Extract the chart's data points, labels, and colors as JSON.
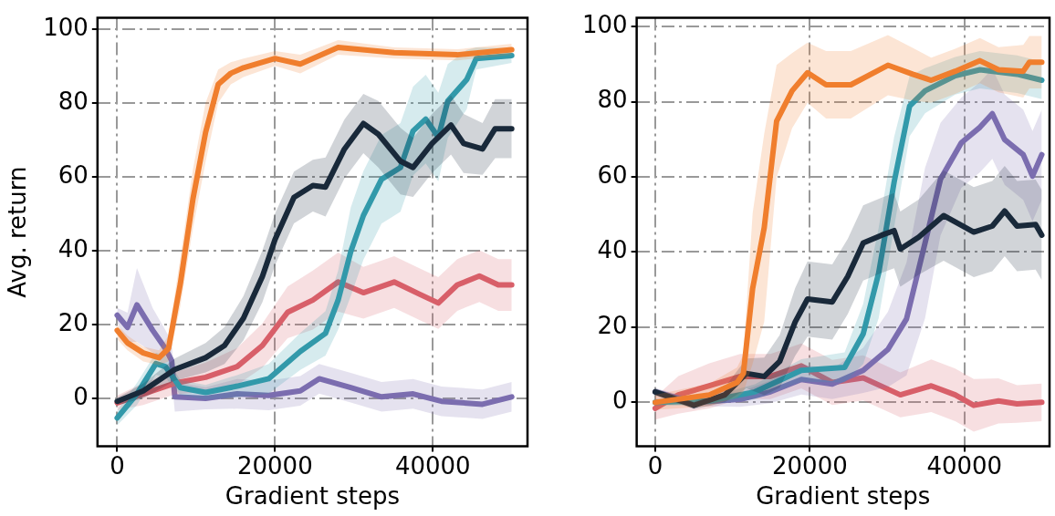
{
  "chart_data": [
    {
      "type": "line",
      "xlabel": "Gradient steps",
      "ylabel": "Avg. return",
      "xlim": [
        -2500,
        52000
      ],
      "ylim": [
        -13,
        103
      ],
      "xticks": [
        0,
        20000,
        40000
      ],
      "yticks": [
        0,
        20,
        40,
        60,
        80,
        100
      ],
      "grid": true,
      "line_style": "solid",
      "marker": "none",
      "series": [
        {
          "color": "#f07f2e",
          "x": [
            0,
            1300,
            3300,
            5300,
            6500,
            8000,
            9600,
            11200,
            12800,
            14400,
            16000,
            20000,
            23200,
            28000,
            35100,
            43100,
            50000
          ],
          "values": [
            18.4,
            15,
            12.3,
            11,
            13.5,
            31,
            54,
            72,
            85,
            88,
            89.5,
            92,
            90.5,
            95,
            93.6,
            93,
            94.4
          ],
          "lower": [
            16,
            13,
            10,
            9,
            10,
            25,
            46,
            64,
            80,
            85,
            87,
            90,
            88,
            93,
            92,
            91.5,
            93
          ],
          "upper": [
            20,
            17,
            14,
            13,
            17,
            38,
            62,
            80,
            89,
            91,
            92,
            94,
            93,
            97,
            95,
            94.5,
            96
          ]
        },
        {
          "color": "#1a2a3a",
          "x": [
            0,
            3300,
            7300,
            11200,
            13600,
            16000,
            18400,
            20000,
            22400,
            24800,
            26400,
            28800,
            31200,
            33100,
            35900,
            37500,
            39900,
            42300,
            43900,
            46300,
            47900,
            50000
          ],
          "values": [
            -0.8,
            2,
            7.8,
            11,
            14.3,
            21.7,
            33,
            43,
            54.4,
            57.6,
            57.2,
            67.5,
            74.4,
            71.5,
            64.2,
            62.5,
            69,
            74,
            69,
            67.5,
            73,
            73
          ],
          "lower": [
            -1.8,
            0,
            4.8,
            7,
            9.3,
            15.7,
            26,
            36,
            47.4,
            50.6,
            49.2,
            59.5,
            66.4,
            62.5,
            55.2,
            54.5,
            61,
            66,
            61,
            60.5,
            65,
            65
          ],
          "upper": [
            0.2,
            4,
            10.8,
            15,
            19.3,
            27.7,
            40,
            50,
            61.4,
            64.6,
            65.2,
            75.5,
            82.4,
            80.5,
            73.2,
            70.5,
            77,
            82,
            77,
            74.5,
            81,
            81
          ]
        },
        {
          "color": "#3399aa",
          "x": [
            0,
            2500,
            4900,
            6100,
            8000,
            11200,
            15200,
            19200,
            23200,
            26400,
            28000,
            29600,
            31200,
            33500,
            35900,
            37500,
            39100,
            40700,
            41900,
            44300,
            45500,
            50000
          ],
          "values": [
            -5.3,
            1.2,
            9.4,
            8.6,
            2.9,
            1.6,
            3.3,
            5.3,
            12.7,
            17.6,
            26.6,
            39.7,
            49.5,
            59.3,
            62.5,
            72.4,
            75.6,
            70.7,
            80.5,
            86.3,
            92,
            92.8
          ],
          "lower": [
            -7.3,
            -1.8,
            6.4,
            5.6,
            0.9,
            -0.4,
            0.3,
            1.3,
            7.7,
            11.6,
            18.6,
            27.7,
            37.5,
            47.3,
            50.5,
            60.4,
            63.6,
            58.7,
            70.5,
            78.3,
            89,
            90.8
          ],
          "upper": [
            -3.3,
            4.2,
            12.4,
            11.6,
            4.9,
            3.6,
            6.3,
            9.3,
            17.7,
            23.6,
            34.6,
            51.7,
            61.5,
            71.3,
            74.5,
            84.4,
            87.6,
            82.7,
            90.5,
            94.3,
            95,
            94.8
          ]
        },
        {
          "color": "#d9606a",
          "x": [
            0,
            3300,
            7300,
            11200,
            15200,
            18400,
            21600,
            24800,
            28000,
            31200,
            35100,
            38300,
            40700,
            43100,
            45900,
            48300,
            50000
          ],
          "values": [
            -1.2,
            1.2,
            4.1,
            5.7,
            8.6,
            14.3,
            23.3,
            26.6,
            31.5,
            28.6,
            31.5,
            28.2,
            25.8,
            30.7,
            33.1,
            30.7,
            30.7
          ],
          "lower": [
            -3.2,
            -1.8,
            1.1,
            1.7,
            3.6,
            8.3,
            16.3,
            18.6,
            23.5,
            21.6,
            24.5,
            21.2,
            18.8,
            23.7,
            26.1,
            23.7,
            23.7
          ],
          "upper": [
            0.8,
            4.2,
            7.1,
            9.7,
            13.6,
            20.3,
            30.3,
            34.6,
            39.5,
            35.6,
            38.5,
            35.2,
            32.8,
            37.7,
            40.1,
            37.7,
            37.7
          ]
        },
        {
          "color": "#7b6db0",
          "x": [
            0,
            1300,
            2500,
            4500,
            6100,
            6900,
            7300,
            11200,
            15200,
            19200,
            23200,
            25600,
            29600,
            33500,
            37500,
            41100,
            46300,
            50000
          ],
          "values": [
            22.5,
            19.2,
            25.3,
            18.4,
            13.5,
            10.2,
            0.4,
            0,
            1.2,
            0.8,
            2,
            5.3,
            2.9,
            0.4,
            1.2,
            -0.8,
            -1.6,
            0.4
          ],
          "lower": [
            20.5,
            15.2,
            15.3,
            12.4,
            8.5,
            5.2,
            -3.6,
            -3,
            -2.8,
            -3.2,
            -2,
            1.3,
            -1.1,
            -3.6,
            -2.8,
            -4.8,
            -5.6,
            -3.6
          ],
          "upper": [
            24.5,
            23.2,
            35.3,
            24.4,
            18.5,
            15.2,
            4.4,
            3,
            5.2,
            4.8,
            6,
            9.3,
            6.9,
            4.4,
            5.2,
            3.2,
            2.4,
            4.4
          ]
        }
      ]
    },
    {
      "type": "line",
      "xlabel": "Gradient steps",
      "xlim": [
        -2400,
        51000
      ],
      "ylim": [
        -11.7,
        102.3
      ],
      "xticks": [
        0,
        20000,
        40000
      ],
      "yticks": [
        0,
        20,
        40,
        60,
        80,
        100
      ],
      "grid": true,
      "line_style": "solid",
      "marker": "none",
      "series": [
        {
          "color": "#f07f2e",
          "x": [
            0,
            7000,
            10600,
            11400,
            12600,
            14100,
            15700,
            17700,
            19700,
            22100,
            25300,
            30100,
            33300,
            35700,
            38800,
            42000,
            44400,
            47600,
            48400,
            50000
          ],
          "values": [
            0,
            2,
            5.3,
            7.7,
            30.3,
            46.5,
            74.8,
            82.9,
            87.7,
            84.5,
            84.5,
            89.7,
            87.3,
            85.7,
            88.1,
            90.9,
            88.5,
            88.1,
            90.5,
            90.5
          ],
          "lower": [
            -2,
            -1,
            1.3,
            2.7,
            10.3,
            21.5,
            59.8,
            72.9,
            79.7,
            75.5,
            75.5,
            81.7,
            80.3,
            79.7,
            82.1,
            84.9,
            82.5,
            81.1,
            83.5,
            83.5
          ],
          "upper": [
            2,
            5,
            9.3,
            12.7,
            50.3,
            71.5,
            89.8,
            92.9,
            95.7,
            93.5,
            93.5,
            97.7,
            94.3,
            91.7,
            94.1,
            96.9,
            94.5,
            95.1,
            97.5,
            97.5
          ]
        },
        {
          "color": "#1a2a3a",
          "x": [
            0,
            5000,
            9000,
            11800,
            14100,
            16100,
            18100,
            19700,
            22900,
            24900,
            26900,
            29300,
            30900,
            31700,
            34100,
            37300,
            41200,
            43600,
            45200,
            46800,
            49200,
            50000
          ],
          "values": [
            2.8,
            -0.8,
            2,
            7.7,
            6.9,
            10.9,
            21.4,
            27.5,
            26.7,
            33.5,
            42.4,
            44.5,
            45.7,
            40.8,
            44,
            49.7,
            45.3,
            46.9,
            50.9,
            46.9,
            47.3,
            44.5
          ],
          "lower": [
            1.8,
            -1.8,
            0,
            3.7,
            1.9,
            3.9,
            12.4,
            17.5,
            16.7,
            23.5,
            32.4,
            34.5,
            35.7,
            30.8,
            34,
            37.7,
            33.3,
            34.9,
            38.9,
            34.9,
            35.3,
            32.5
          ],
          "upper": [
            3.8,
            0.2,
            4,
            11.7,
            11.9,
            17.9,
            30.4,
            37.5,
            36.7,
            43.5,
            52.4,
            54.5,
            55.7,
            50.8,
            54,
            61.7,
            57.3,
            58.9,
            62.9,
            58.9,
            59.3,
            56.5
          ]
        },
        {
          "color": "#3399aa",
          "x": [
            0,
            7000,
            12900,
            18900,
            24500,
            26900,
            28900,
            30900,
            32900,
            34900,
            38800,
            42000,
            46800,
            50000
          ],
          "values": [
            0,
            0.4,
            2.8,
            8.5,
            9.3,
            18.2,
            34.4,
            58.6,
            78.8,
            82.9,
            86.9,
            88.5,
            87.3,
            85.7
          ],
          "lower": [
            -1,
            -0.6,
            0.8,
            5.5,
            5.3,
            10.2,
            22.4,
            46.6,
            70.8,
            76.9,
            81.9,
            83.5,
            82.3,
            80.7
          ],
          "upper": [
            1,
            1.4,
            4.8,
            11.5,
            13.3,
            26.2,
            46.4,
            70.6,
            86.8,
            88.9,
            91.9,
            93.5,
            92.3,
            90.7
          ]
        },
        {
          "color": "#7b6db0",
          "x": [
            0,
            5000,
            11000,
            14900,
            18900,
            22900,
            26900,
            30100,
            32500,
            34900,
            36900,
            39600,
            42000,
            43600,
            45200,
            47600,
            48800,
            50000
          ],
          "values": [
            2.8,
            0,
            0.8,
            2.8,
            6.1,
            4.9,
            8.5,
            14.1,
            22.2,
            42.4,
            59.4,
            69.1,
            73.2,
            76.8,
            69.9,
            65.9,
            60.2,
            65.9
          ],
          "lower": [
            1.8,
            -1,
            -1.2,
            -0.2,
            2.1,
            0.9,
            2.5,
            4.1,
            7.2,
            22.4,
            44.4,
            57.1,
            61.2,
            64.8,
            57.9,
            53.9,
            48.2,
            53.9
          ],
          "upper": [
            3.8,
            1,
            2.8,
            5.8,
            10.1,
            8.9,
            14.5,
            24.1,
            37.2,
            62.4,
            74.4,
            81.1,
            85.2,
            88.8,
            81.9,
            77.9,
            72.2,
            77.9
          ]
        },
        {
          "color": "#d9606a",
          "x": [
            0,
            3000,
            7000,
            11000,
            14900,
            18900,
            22900,
            26900,
            31700,
            35700,
            38800,
            41200,
            44400,
            46800,
            50000
          ],
          "values": [
            -1.6,
            2,
            4.4,
            6.9,
            6.9,
            9.7,
            5.3,
            6.5,
            2,
            4.4,
            2,
            -0.8,
            0.4,
            -0.4,
            0
          ],
          "lower": [
            -4.6,
            -3,
            -1.6,
            0.9,
            0.9,
            3.7,
            -0.7,
            0.5,
            -4,
            -2.6,
            -5,
            -7.8,
            -5.6,
            -5.4,
            -5
          ],
          "upper": [
            1.4,
            7,
            10.4,
            12.9,
            12.9,
            15.7,
            11.3,
            12.5,
            8,
            11.4,
            9,
            6.2,
            6.4,
            4.6,
            5
          ]
        }
      ]
    }
  ]
}
